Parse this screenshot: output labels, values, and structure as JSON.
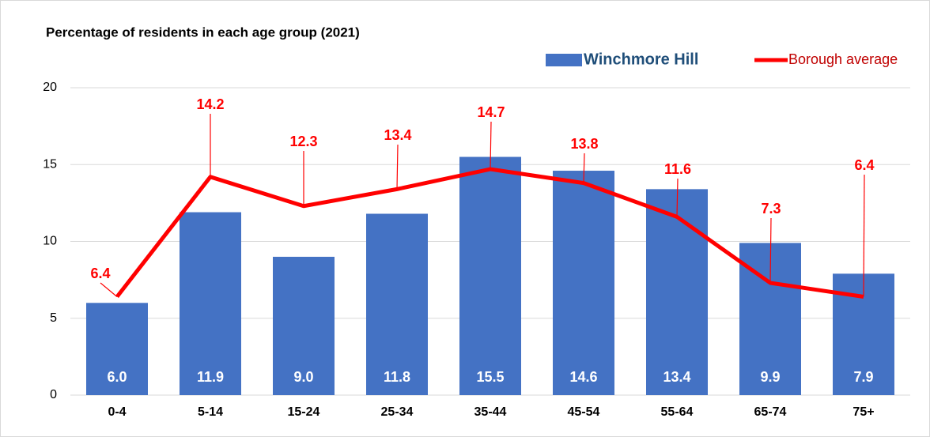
{
  "chart_data": {
    "type": "bar_line",
    "title": "Percentage of residents in each age group (2021)",
    "categories": [
      "0-4",
      "5-14",
      "15-24",
      "25-34",
      "35-44",
      "45-54",
      "55-64",
      "65-74",
      "75+"
    ],
    "series": [
      {
        "name": "Winchmore Hill",
        "type": "bar",
        "color": "#4472c4",
        "values": [
          6.0,
          11.9,
          9.0,
          11.8,
          15.5,
          14.6,
          13.4,
          9.9,
          7.9
        ],
        "value_labels": [
          "6.0",
          "11.9",
          "9.0",
          "11.8",
          "15.5",
          "14.6",
          "13.4",
          "9.9",
          "7.9"
        ]
      },
      {
        "name": "Borough average",
        "type": "line",
        "color": "#ff0000",
        "values": [
          6.4,
          14.2,
          12.3,
          13.4,
          14.7,
          13.8,
          11.6,
          7.3,
          6.4
        ]
      }
    ],
    "ylim": [
      0,
      20
    ],
    "yticks": [
      0,
      5,
      10,
      15,
      20
    ],
    "grid": true,
    "legend": "top-right"
  }
}
